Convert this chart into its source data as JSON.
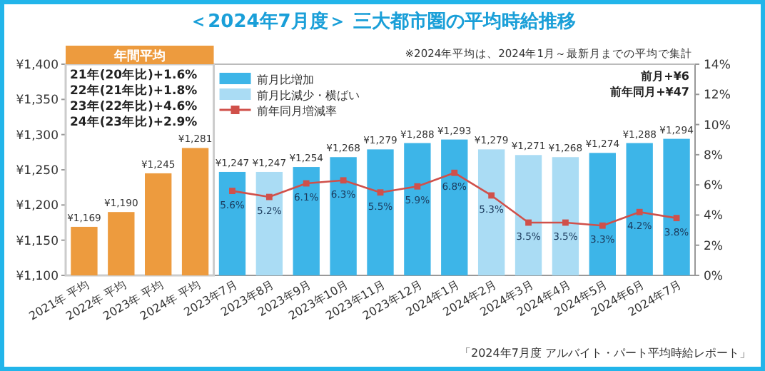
{
  "chart_data": {
    "type": "bar",
    "title": "＜2024年7月度＞ 三大都市圏の平均時給推移",
    "categories": [
      "2021年 平均",
      "2022年 平均",
      "2023年 平均",
      "2024年 平均",
      "2023年7月",
      "2023年8月",
      "2023年9月",
      "2023年10月",
      "2023年11月",
      "2023年12月",
      "2024年1月",
      "2024年2月",
      "2024年3月",
      "2024年4月",
      "2024年5月",
      "2024年6月",
      "2024年7月"
    ],
    "series": [
      {
        "color": "#ed9b3e",
        "values": [
          1169,
          1190,
          1245,
          1281,
          null,
          null,
          null,
          null,
          null,
          null,
          null,
          null,
          null,
          null,
          null,
          null,
          null
        ],
        "value_labels": [
          "¥1,169",
          "¥1,190",
          "¥1,245",
          "¥1,281",
          null,
          null,
          null,
          null,
          null,
          null,
          null,
          null,
          null,
          null,
          null,
          null,
          null
        ]
      },
      {
        "name": "前月比増加",
        "color": "#3db5e8",
        "values": [
          null,
          null,
          null,
          null,
          1247,
          null,
          1254,
          1268,
          1279,
          1288,
          1293,
          null,
          null,
          null,
          1274,
          1288,
          1294
        ],
        "value_labels": [
          null,
          null,
          null,
          null,
          "¥1,247",
          null,
          "¥1,254",
          "¥1,268",
          "¥1,279",
          "¥1,288",
          "¥1,293",
          null,
          null,
          null,
          "¥1,274",
          "¥1,288",
          "¥1,294"
        ]
      },
      {
        "name": "前月比減少・横ばい",
        "color": "#aadcf4",
        "values": [
          null,
          null,
          null,
          null,
          null,
          1247,
          null,
          null,
          null,
          null,
          null,
          1279,
          1271,
          1268,
          null,
          null,
          null
        ],
        "value_labels": [
          null,
          null,
          null,
          null,
          null,
          "¥1,247",
          null,
          null,
          null,
          null,
          null,
          "¥1,279",
          "¥1,271",
          "¥1,268",
          null,
          null,
          null
        ]
      },
      {
        "name": "前年同月増減率",
        "type": "line",
        "axis": "y2",
        "color": "#d0504a",
        "marker": "square",
        "values": [
          null,
          null,
          null,
          null,
          5.6,
          5.2,
          6.1,
          6.3,
          5.5,
          5.9,
          6.8,
          5.3,
          3.5,
          3.5,
          3.3,
          4.2,
          3.8
        ],
        "value_labels": [
          null,
          null,
          null,
          null,
          "5.6%",
          "5.2%",
          "6.1%",
          "6.3%",
          "5.5%",
          "5.9%",
          "6.8%",
          "5.3%",
          "3.5%",
          "3.5%",
          "3.3%",
          "4.2%",
          "3.8%"
        ]
      }
    ],
    "ylim": [
      1100,
      1400
    ],
    "yticks": [
      {
        "value": 1100,
        "label": "¥1,100"
      },
      {
        "value": 1150,
        "label": "¥1,150"
      },
      {
        "value": 1200,
        "label": "¥1,200"
      },
      {
        "value": 1250,
        "label": "¥1,250"
      },
      {
        "value": 1300,
        "label": "¥1,300"
      },
      {
        "value": 1350,
        "label": "¥1,350"
      },
      {
        "value": 1400,
        "label": "¥1,400"
      }
    ],
    "y2lim": [
      0,
      14
    ],
    "y2ticks": [
      {
        "value": 0,
        "label": "0%"
      },
      {
        "value": 2,
        "label": "2%"
      },
      {
        "value": 4,
        "label": "4%"
      },
      {
        "value": 6,
        "label": "6%"
      },
      {
        "value": 8,
        "label": "8%"
      },
      {
        "value": 10,
        "label": "10%"
      },
      {
        "value": 12,
        "label": "12%"
      },
      {
        "value": 14,
        "label": "14%"
      }
    ],
    "annotations": [
      "年間平均",
      "21年(20年比)+1.6%",
      "22年(21年比)+1.8%",
      "23年(22年比)+4.6%",
      "24年(23年比)+2.9%",
      "※2024年平均は、2024年1月～最新月までの平均で集計",
      "前月+¥6",
      "前年同月+¥47",
      "「2024年7月度 アルバイト・パート平均時給レポート」"
    ],
    "legend": "top",
    "grid": false
  }
}
